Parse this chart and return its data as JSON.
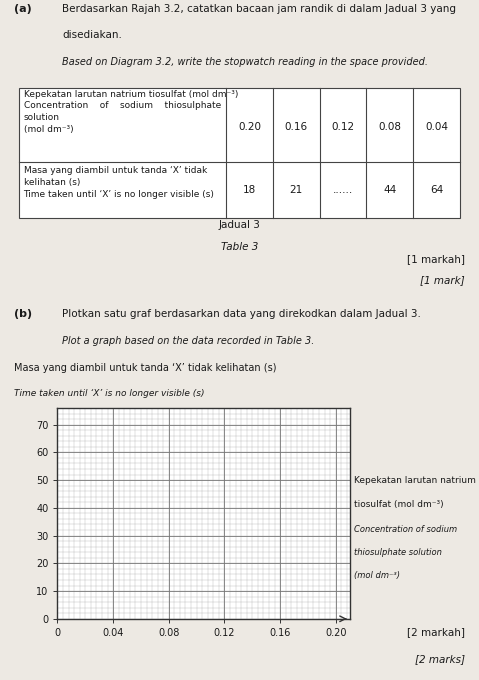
{
  "page_bg": "#ede9e3",
  "part_a_label": "(a)",
  "part_a_line1": "Berdasarkan Rajah 3.2, catatkan bacaan jam randik di dalam Jadual 3 yang",
  "part_a_line2": "disediakan.",
  "part_a_italic": "Based on Diagram 3.2, write the stopwatch reading in the space provided.",
  "table_row1_label": "Kepekatan larutan natrium tiosulfat (mol dm⁻³)\nConcentration    of    sodium    thiosulphate\nsolution\n(mol dm⁻³)",
  "table_row1_vals": [
    "0.20",
    "0.16",
    "0.12",
    "0.08",
    "0.04"
  ],
  "table_row2_label": "Masa yang diambil untuk tanda ‘X’ tidak\nkelihatan (s)\nTime taken until ‘X’ is no longer visible (s)",
  "table_row2_vals": [
    "18",
    "21",
    "......",
    "44",
    "64"
  ],
  "caption_malay": "Jadual 3",
  "caption_english": "Table 3",
  "marks_a_1": "[1 markah]",
  "marks_a_2": "[1 mark]",
  "part_b_label": "(b)",
  "part_b_malay": "Plotkan satu graf berdasarkan data yang direkodkan dalam Jadual 3.",
  "part_b_italic": "Plot a graph based on the data recorded in Table 3.",
  "ylabel_line1": "Masa yang diambil untuk tanda ‘X’ tidak kelihatan (s)",
  "ylabel_line2": "Time taken until ‘X’ is no longer visible (s)",
  "xlabel_line1": "Kepekatan larutan natrium",
  "xlabel_line2": "tiosulfat (mol dm⁻³)",
  "xlabel_line3": "Concentration of sodium",
  "xlabel_line4": "thiosulphate solution",
  "xlabel_line5": "(mol dm⁻³)",
  "yticks": [
    0,
    10,
    20,
    30,
    40,
    50,
    60,
    70
  ],
  "xticks": [
    0,
    0.04,
    0.08,
    0.12,
    0.16,
    0.2
  ],
  "xtick_labels": [
    "0",
    "0.04",
    "0.08",
    "0.12",
    "0.16",
    "0.20"
  ],
  "ylim": [
    0,
    76
  ],
  "xlim": [
    0,
    0.21
  ],
  "marks_b_1": "[2 markah]",
  "marks_b_2": "[2 marks]",
  "grid_major_color": "#777777",
  "grid_minor_color": "#aaaaaa",
  "table_border": "#444444",
  "text_color": "#1a1a1a"
}
